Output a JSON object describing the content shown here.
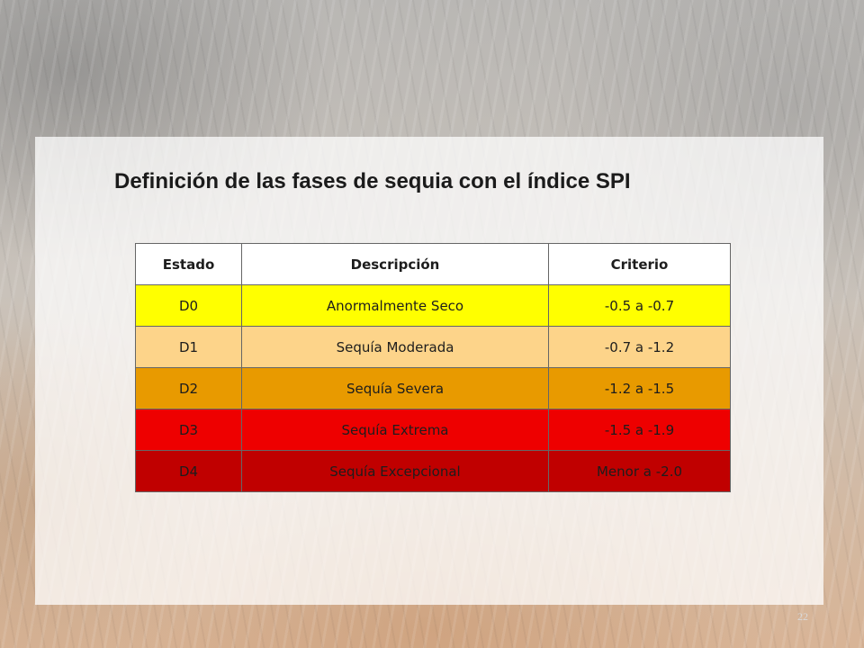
{
  "slide": {
    "title": "Definición de las fases de sequia con el índice SPI",
    "page_number": "22"
  },
  "table": {
    "headers": [
      "Estado",
      "Descripción",
      "Criterio"
    ],
    "rows": [
      {
        "estado": "D0",
        "descripcion": "Anormalmente Seco",
        "criterio": "-0.5 a -0.7",
        "color": "#ffff00"
      },
      {
        "estado": "D1",
        "descripcion": "Sequía Moderada",
        "criterio": "-0.7 a -1.2",
        "color": "#fdd48a"
      },
      {
        "estado": "D2",
        "descripcion": "Sequía Severa",
        "criterio": "-1.2 a -1.5",
        "color": "#e89a00"
      },
      {
        "estado": "D3",
        "descripcion": "Sequía Extrema",
        "criterio": "-1.5 a -1.9",
        "color": "#ee0000"
      },
      {
        "estado": "D4",
        "descripcion": "Sequía Excepcional",
        "criterio": "Menor a -2.0",
        "color": "#c00000"
      }
    ]
  }
}
